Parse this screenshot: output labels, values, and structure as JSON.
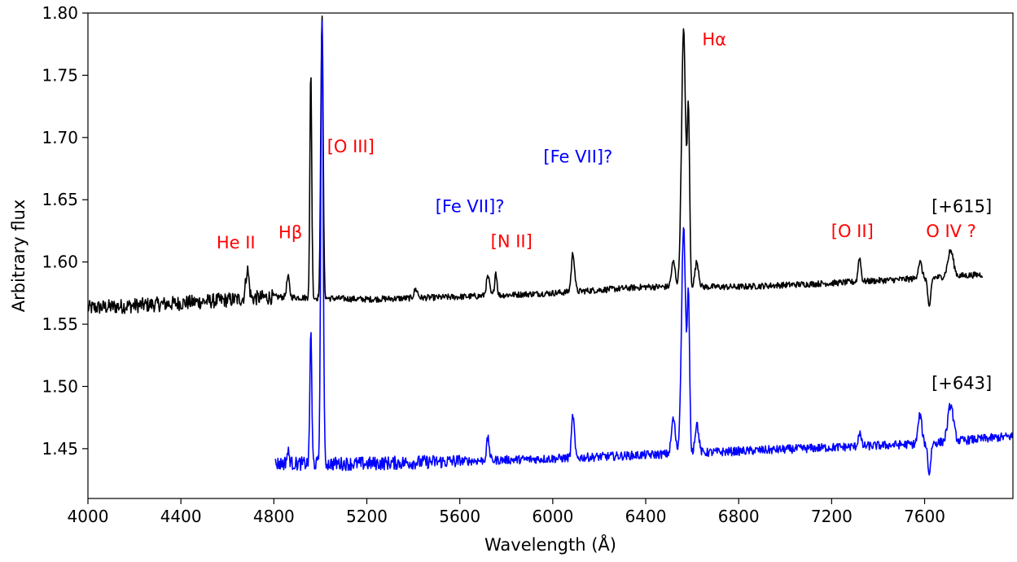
{
  "chart_data": {
    "type": "line",
    "title": "",
    "xlabel": "Wavelength (Å)",
    "ylabel": "Arbitrary flux",
    "xlim": [
      4000,
      7980
    ],
    "ylim": [
      1.41,
      1.8
    ],
    "xticks": [
      "4000",
      "4400",
      "4800",
      "5200",
      "5600",
      "6000",
      "6400",
      "6800",
      "7200",
      "7600"
    ],
    "yticks": [
      "1.45",
      "1.50",
      "1.55",
      "1.60",
      "1.65",
      "1.70",
      "1.75",
      "1.80"
    ],
    "grid": false,
    "series": [
      {
        "name": "[+615]",
        "color": "#000000",
        "x_range": [
          4000,
          7850
        ],
        "continuum": [
          [
            4000,
            1.563
          ],
          [
            4400,
            1.567
          ],
          [
            4800,
            1.572
          ],
          [
            5200,
            1.57
          ],
          [
            5600,
            1.572
          ],
          [
            6000,
            1.575
          ],
          [
            6400,
            1.58
          ],
          [
            6800,
            1.58
          ],
          [
            7200,
            1.583
          ],
          [
            7600,
            1.587
          ],
          [
            7850,
            1.59
          ]
        ],
        "lines": [
          {
            "x": 4686,
            "peak": 1.594,
            "width": 7
          },
          {
            "x": 4861,
            "peak": 1.588,
            "width": 6
          },
          {
            "x": 4959,
            "peak": 1.755,
            "width": 4
          },
          {
            "x": 5007,
            "peak": 1.8,
            "width": 5
          },
          {
            "x": 5411,
            "peak": 1.578,
            "width": 8
          },
          {
            "x": 5721,
            "peak": 1.588,
            "width": 7
          },
          {
            "x": 5755,
            "peak": 1.592,
            "width": 5
          },
          {
            "x": 6087,
            "peak": 1.607,
            "width": 7
          },
          {
            "x": 6519,
            "peak": 1.6,
            "width": 8
          },
          {
            "x": 6563,
            "peak": 1.786,
            "width": 9
          },
          {
            "x": 6584,
            "peak": 1.716,
            "width": 5
          },
          {
            "x": 6620,
            "peak": 1.6,
            "width": 8
          },
          {
            "x": 7320,
            "peak": 1.604,
            "width": 6
          },
          {
            "x": 7580,
            "peak": 1.6,
            "width": 8
          },
          {
            "x": 7620,
            "peak": 1.562,
            "width": 6
          },
          {
            "x": 7712,
            "peak": 1.609,
            "width": 12
          }
        ]
      },
      {
        "name": "[+643]",
        "color": "#0000ff",
        "x_range": [
          4805,
          7980
        ],
        "continuum": [
          [
            4805,
            1.438
          ],
          [
            5200,
            1.438
          ],
          [
            5600,
            1.44
          ],
          [
            6000,
            1.442
          ],
          [
            6400,
            1.445
          ],
          [
            6800,
            1.448
          ],
          [
            7200,
            1.451
          ],
          [
            7600,
            1.454
          ],
          [
            7980,
            1.46
          ]
        ],
        "lines": [
          {
            "x": 4861,
            "peak": 1.447,
            "width": 6
          },
          {
            "x": 4959,
            "peak": 1.547,
            "width": 4
          },
          {
            "x": 5007,
            "peak": 1.8,
            "width": 5
          },
          {
            "x": 5721,
            "peak": 1.458,
            "width": 6
          },
          {
            "x": 6087,
            "peak": 1.477,
            "width": 6
          },
          {
            "x": 6519,
            "peak": 1.474,
            "width": 8
          },
          {
            "x": 6563,
            "peak": 1.628,
            "width": 9
          },
          {
            "x": 6584,
            "peak": 1.565,
            "width": 5
          },
          {
            "x": 6620,
            "peak": 1.47,
            "width": 8
          },
          {
            "x": 7320,
            "peak": 1.463,
            "width": 6
          },
          {
            "x": 7580,
            "peak": 1.477,
            "width": 8
          },
          {
            "x": 7620,
            "peak": 1.43,
            "width": 6
          },
          {
            "x": 7712,
            "peak": 1.485,
            "width": 12
          }
        ]
      }
    ],
    "annotations": [
      {
        "text": "He II",
        "x": 4553,
        "y": 1.611,
        "color": "#ff0000"
      },
      {
        "text": "Hβ",
        "x": 4820,
        "y": 1.619,
        "color": "#ff0000"
      },
      {
        "text": "[O III]",
        "x": 5029,
        "y": 1.688,
        "color": "#ff0000"
      },
      {
        "text": "[Fe VII]?",
        "x": 5495,
        "y": 1.64,
        "color": "#0000ff"
      },
      {
        "text": "[N II]",
        "x": 5733,
        "y": 1.612,
        "color": "#ff0000"
      },
      {
        "text": "[Fe VII]?",
        "x": 5960,
        "y": 1.68,
        "color": "#0000ff"
      },
      {
        "text": "Hα",
        "x": 6643,
        "y": 1.774,
        "color": "#ff0000"
      },
      {
        "text": "[O II]",
        "x": 7198,
        "y": 1.62,
        "color": "#ff0000"
      },
      {
        "text": "O IV ?",
        "x": 7606,
        "y": 1.62,
        "color": "#ff0000"
      },
      {
        "text": "[+615]",
        "x": 7630,
        "y": 1.64,
        "color": "#000000"
      },
      {
        "text": "[+643]",
        "x": 7630,
        "y": 1.498,
        "color": "#000000"
      }
    ]
  }
}
